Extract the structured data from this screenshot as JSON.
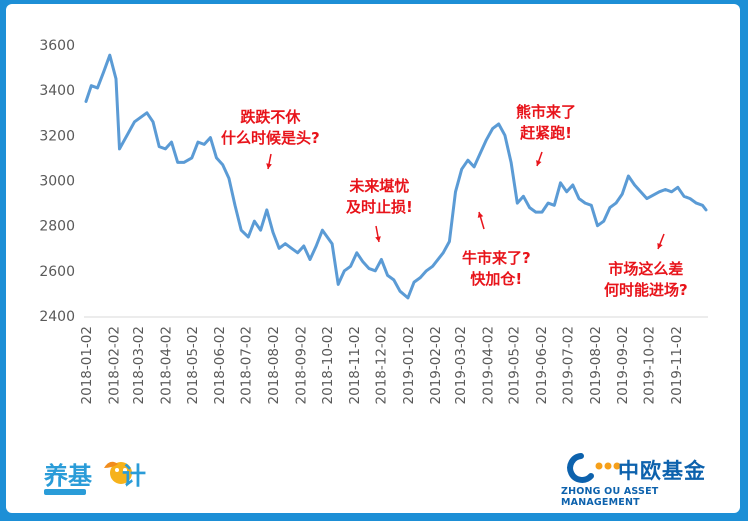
{
  "chart_data": {
    "type": "line",
    "title": "",
    "xlabel": "",
    "ylabel": "",
    "ylim": [
      2400,
      3600
    ],
    "yticks": [
      2400,
      2600,
      2800,
      3000,
      3200,
      3400,
      3600
    ],
    "xticks": [
      "2018-01-02",
      "2018-02-02",
      "2018-03-02",
      "2018-04-02",
      "2018-05-02",
      "2018-06-02",
      "2018-07-02",
      "2018-08-02",
      "2018-09-02",
      "2018-10-02",
      "2018-11-02",
      "2018-12-02",
      "2019-01-02",
      "2019-02-02",
      "2019-03-02",
      "2019-04-02",
      "2019-05-02",
      "2019-06-02",
      "2019-07-02",
      "2019-08-02",
      "2019-09-02",
      "2019-10-02",
      "2019-11-02"
    ],
    "grid": false,
    "line_color": "#5b9bd5",
    "series": [
      {
        "x": [
          "2018-01-02",
          "2018-01-08",
          "2018-01-15",
          "2018-01-22",
          "2018-01-29",
          "2018-02-05",
          "2018-02-09",
          "2018-02-26",
          "2018-03-05",
          "2018-03-12",
          "2018-03-19",
          "2018-03-26",
          "2018-04-02",
          "2018-04-09",
          "2018-04-16",
          "2018-04-23",
          "2018-05-02",
          "2018-05-09",
          "2018-05-16",
          "2018-05-23",
          "2018-05-30",
          "2018-06-06",
          "2018-06-13",
          "2018-06-20",
          "2018-06-27",
          "2018-07-05",
          "2018-07-12",
          "2018-07-19",
          "2018-07-26",
          "2018-08-02",
          "2018-08-09",
          "2018-08-16",
          "2018-08-23",
          "2018-08-30",
          "2018-09-06",
          "2018-09-13",
          "2018-09-20",
          "2018-09-27",
          "2018-10-08",
          "2018-10-15",
          "2018-10-22",
          "2018-10-29",
          "2018-11-05",
          "2018-11-12",
          "2018-11-19",
          "2018-11-26",
          "2018-12-03",
          "2018-12-10",
          "2018-12-17",
          "2018-12-24",
          "2019-01-02",
          "2019-01-09",
          "2019-01-16",
          "2019-01-23",
          "2019-01-30",
          "2019-02-11",
          "2019-02-18",
          "2019-02-25",
          "2019-03-04",
          "2019-03-11",
          "2019-03-18",
          "2019-03-25",
          "2019-04-01",
          "2019-04-08",
          "2019-04-15",
          "2019-04-22",
          "2019-04-29",
          "2019-05-06",
          "2019-05-13",
          "2019-05-20",
          "2019-05-27",
          "2019-06-03",
          "2019-06-10",
          "2019-06-17",
          "2019-06-24",
          "2019-07-01",
          "2019-07-08",
          "2019-07-15",
          "2019-07-22",
          "2019-07-29",
          "2019-08-05",
          "2019-08-12",
          "2019-08-19",
          "2019-08-26",
          "2019-09-02",
          "2019-09-09",
          "2019-09-16",
          "2019-09-23",
          "2019-09-30",
          "2019-10-14",
          "2019-10-21",
          "2019-10-28",
          "2019-11-04",
          "2019-11-11",
          "2019-11-18",
          "2019-11-25",
          "2019-12-02",
          "2019-12-06"
        ],
        "values": [
          3350,
          3420,
          3410,
          3480,
          3555,
          3450,
          3140,
          3260,
          3280,
          3300,
          3260,
          3150,
          3140,
          3170,
          3080,
          3080,
          3100,
          3170,
          3160,
          3190,
          3100,
          3070,
          3010,
          2890,
          2780,
          2750,
          2820,
          2780,
          2870,
          2770,
          2700,
          2720,
          2700,
          2680,
          2710,
          2650,
          2710,
          2780,
          2720,
          2540,
          2600,
          2620,
          2680,
          2640,
          2610,
          2600,
          2650,
          2580,
          2560,
          2510,
          2480,
          2550,
          2570,
          2600,
          2620,
          2680,
          2730,
          2950,
          3050,
          3090,
          3060,
          3120,
          3180,
          3230,
          3250,
          3200,
          3080,
          2900,
          2930,
          2880,
          2860,
          2860,
          2900,
          2890,
          2990,
          2950,
          2980,
          2920,
          2900,
          2890,
          2800,
          2820,
          2880,
          2900,
          2940,
          3020,
          2980,
          2950,
          2920,
          2950,
          2960,
          2950,
          2970,
          2930,
          2920,
          2900,
          2890,
          2870
        ]
      }
    ],
    "annotations": [
      {
        "line1": "跌跌不休",
        "line2": "什么时候是头?"
      },
      {
        "line1": "未来堪忧",
        "line2": "及时止损!"
      },
      {
        "line1": "牛市来了?",
        "line2": "快加仓!"
      },
      {
        "line1": "熊市来了",
        "line2": "赶紧跑!"
      },
      {
        "line1": "市场这么差",
        "line2": "何时能进场?"
      }
    ],
    "annotation_color": "#e8141b"
  },
  "branding": {
    "left_logo_text_a": "养基",
    "left_logo_text_b": "计",
    "right_logo_name": "中欧基金",
    "right_logo_sub": "ZHONG OU ASSET MANAGEMENT",
    "brand_color": "#0d62ad"
  }
}
